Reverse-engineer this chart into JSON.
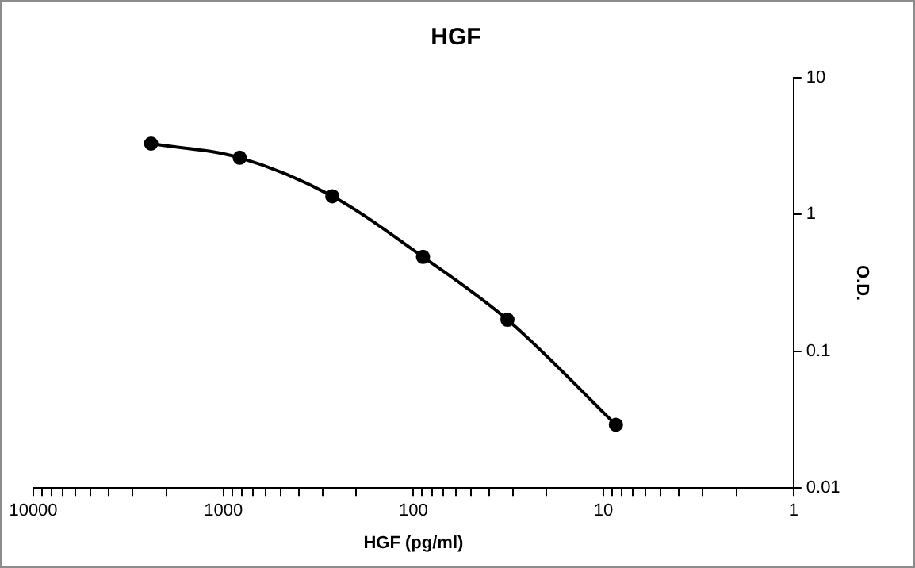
{
  "chart_data": {
    "type": "line",
    "title": "HGF",
    "xlabel": "HGF (pg/ml)",
    "ylabel": "O.D.",
    "x": [
      2400,
      820,
      267,
      89,
      32,
      8.6
    ],
    "series": [
      {
        "color": "#000000",
        "values": [
          3.3,
          2.6,
          1.36,
          0.49,
          0.17,
          0.029
        ]
      }
    ],
    "log": "xy",
    "xlim": [
      10000,
      1
    ],
    "ylim": [
      0.01,
      10
    ],
    "xticks": [
      10000,
      {
        "value": 9000,
        "label": null
      },
      {
        "value": 8000,
        "label": null
      },
      {
        "value": 7000,
        "label": null
      },
      {
        "value": 6000,
        "label": null
      },
      {
        "value": 5000,
        "label": null
      },
      {
        "value": 4000,
        "label": null
      },
      {
        "value": 3000,
        "label": null
      },
      {
        "value": 2000,
        "label": null
      },
      1000,
      {
        "value": 900,
        "label": null
      },
      {
        "value": 800,
        "label": null
      },
      {
        "value": 700,
        "label": null
      },
      {
        "value": 600,
        "label": null
      },
      {
        "value": 500,
        "label": null
      },
      {
        "value": 400,
        "label": null
      },
      {
        "value": 300,
        "label": null
      },
      {
        "value": 200,
        "label": null
      },
      100,
      {
        "value": 90,
        "label": null
      },
      {
        "value": 80,
        "label": null
      },
      {
        "value": 70,
        "label": null
      },
      {
        "value": 60,
        "label": null
      },
      {
        "value": 50,
        "label": null
      },
      {
        "value": 40,
        "label": null
      },
      {
        "value": 30,
        "label": null
      },
      {
        "value": 20,
        "label": null
      },
      10,
      {
        "value": 9,
        "label": null
      },
      {
        "value": 8,
        "label": null
      },
      {
        "value": 7,
        "label": null
      },
      {
        "value": 6,
        "label": null
      },
      {
        "value": 5,
        "label": null
      },
      {
        "value": 4,
        "label": null
      },
      {
        "value": 3,
        "label": null
      },
      {
        "value": 2,
        "label": null
      },
      1
    ],
    "yticks": [
      10,
      1,
      0.1,
      0.01
    ],
    "grid": false,
    "legend": false,
    "marker": "circle",
    "line_style": "solid"
  }
}
